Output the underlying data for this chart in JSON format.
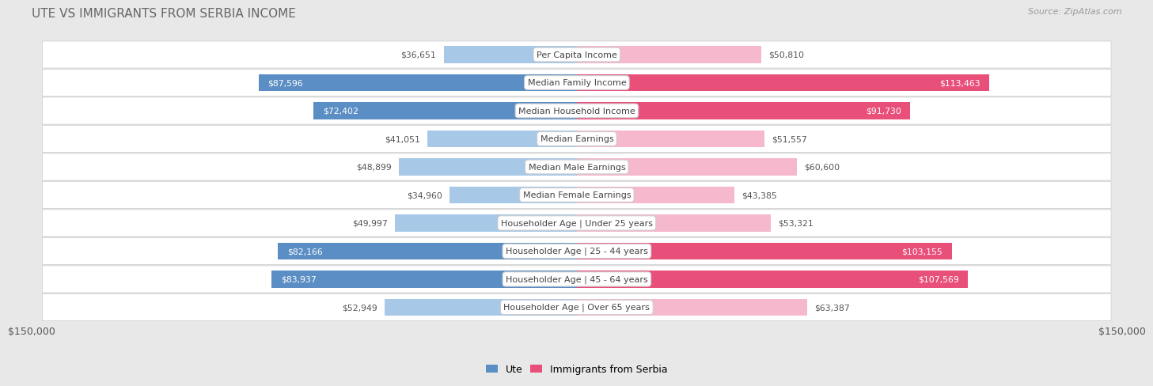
{
  "title": "Ute vs Immigrants from Serbia Income",
  "source": "Source: ZipAtlas.com",
  "categories": [
    "Per Capita Income",
    "Median Family Income",
    "Median Household Income",
    "Median Earnings",
    "Median Male Earnings",
    "Median Female Earnings",
    "Householder Age | Under 25 years",
    "Householder Age | 25 - 44 years",
    "Householder Age | 45 - 64 years",
    "Householder Age | Over 65 years"
  ],
  "ute_values": [
    36651,
    87596,
    72402,
    41051,
    48899,
    34960,
    49997,
    82166,
    83937,
    52949
  ],
  "serbia_values": [
    50810,
    113463,
    91730,
    51557,
    60600,
    43385,
    53321,
    103155,
    107569,
    63387
  ],
  "ute_labels": [
    "$36,651",
    "$87,596",
    "$72,402",
    "$41,051",
    "$48,899",
    "$34,960",
    "$49,997",
    "$82,166",
    "$83,937",
    "$52,949"
  ],
  "serbia_labels": [
    "$50,810",
    "$113,463",
    "$91,730",
    "$51,557",
    "$60,600",
    "$43,385",
    "$53,321",
    "$103,155",
    "$107,569",
    "$63,387"
  ],
  "ute_color_light": "#a8c8e8",
  "ute_color_dark": "#5b8ec4",
  "serbia_color_light": "#f5b8cc",
  "serbia_color_dark": "#e8507a",
  "max_value": 150000,
  "legend_ute": "Ute",
  "legend_serbia": "Immigrants from Serbia",
  "bg_color": "#e8e8e8",
  "row_color": "#ffffff",
  "title_color": "#555555",
  "label_outside_color": "#555555",
  "label_inside_color": "#ffffff"
}
